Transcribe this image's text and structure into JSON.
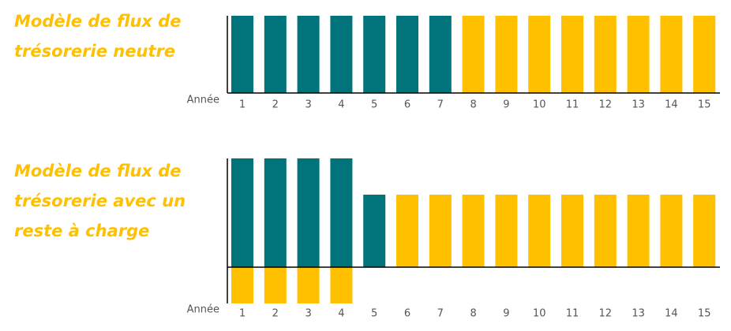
{
  "chart_data": [
    {
      "type": "bar",
      "title": [
        "Modèle de flux de",
        "trésorerie neutre"
      ],
      "x_label": "Année",
      "categories": [
        "1",
        "2",
        "3",
        "4",
        "5",
        "6",
        "7",
        "8",
        "9",
        "10",
        "11",
        "12",
        "13",
        "14",
        "15"
      ],
      "ylim": [
        0,
        1
      ],
      "series": [
        {
          "values": [
            1,
            1,
            1,
            1,
            1,
            1,
            1,
            1,
            1,
            1,
            1,
            1,
            1,
            1,
            1
          ],
          "colors": [
            "#00747a",
            "#00747a",
            "#00747a",
            "#00747a",
            "#00747a",
            "#00747a",
            "#00747a",
            "#ffc000",
            "#ffc000",
            "#ffc000",
            "#ffc000",
            "#ffc000",
            "#ffc000",
            "#ffc000",
            "#ffc000"
          ]
        }
      ]
    },
    {
      "type": "bar",
      "title": [
        "Modèle de flux de",
        "trésorerie avec un",
        "reste à charge"
      ],
      "x_label": "Année",
      "categories": [
        "1",
        "2",
        "3",
        "4",
        "5",
        "6",
        "7",
        "8",
        "9",
        "10",
        "11",
        "12",
        "13",
        "14",
        "15"
      ],
      "ylim": [
        -1,
        3
      ],
      "series": [
        {
          "values": [
            3,
            3,
            3,
            3,
            2,
            2,
            2,
            2,
            2,
            2,
            2,
            2,
            2,
            2,
            2
          ],
          "colors": [
            "#00747a",
            "#00747a",
            "#00747a",
            "#00747a",
            "#00747a",
            "#ffc000",
            "#ffc000",
            "#ffc000",
            "#ffc000",
            "#ffc000",
            "#ffc000",
            "#ffc000",
            "#ffc000",
            "#ffc000",
            "#ffc000"
          ]
        },
        {
          "values": [
            -1,
            -1,
            -1,
            -1,
            null,
            null,
            null,
            null,
            null,
            null,
            null,
            null,
            null,
            null,
            null
          ],
          "colors": [
            "#ffc000",
            "#ffc000",
            "#ffc000",
            "#ffc000",
            "#ffc000",
            "#ffc000",
            "#ffc000",
            "#ffc000",
            "#ffc000",
            "#ffc000",
            "#ffc000",
            "#ffc000",
            "#ffc000",
            "#ffc000",
            "#ffc000"
          ]
        }
      ]
    }
  ]
}
